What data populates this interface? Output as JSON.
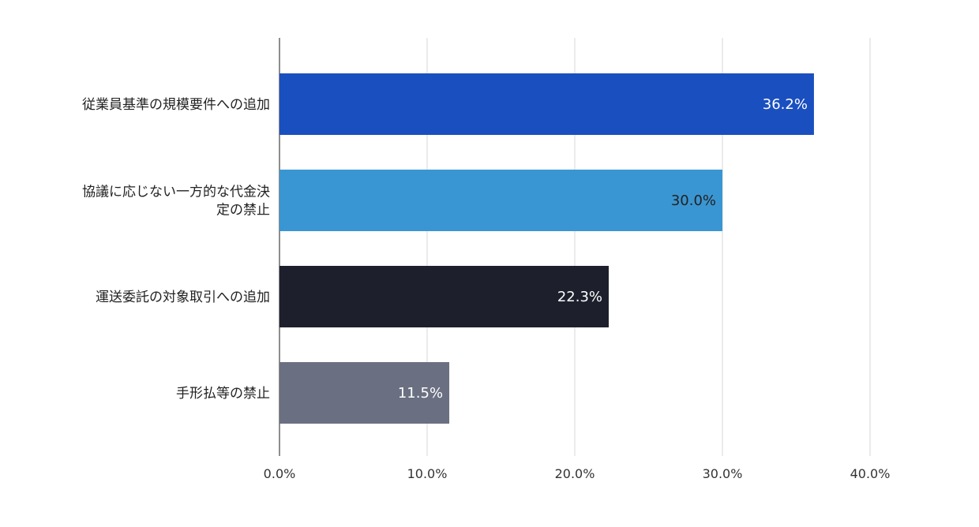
{
  "chart_data": {
    "type": "bar",
    "orientation": "horizontal",
    "categories": [
      [
        "従業員基準の規模要件への追加"
      ],
      [
        "協議に応じない一方的な代金決",
        "定の禁止"
      ],
      [
        "運送委託の対象取引への追加"
      ],
      [
        "手形払等の禁止"
      ]
    ],
    "values": [
      36.2,
      30.0,
      22.3,
      11.5
    ],
    "value_labels": [
      "36.2%",
      "30.0%",
      "22.3%",
      "11.5%"
    ],
    "bar_colors": [
      "#1a4fc0",
      "#3a96d2",
      "#1d202c",
      "#6b6f82"
    ],
    "value_label_colors": [
      "#ffffff",
      "#222222",
      "#ffffff",
      "#ffffff"
    ],
    "x_ticks": [
      0,
      10,
      20,
      30,
      40
    ],
    "x_tick_labels": [
      "0.0%",
      "10.0%",
      "20.0%",
      "30.0%",
      "40.0%"
    ],
    "xlim": [
      0,
      40
    ],
    "grid": true,
    "title": "",
    "xlabel": "",
    "ylabel": ""
  }
}
